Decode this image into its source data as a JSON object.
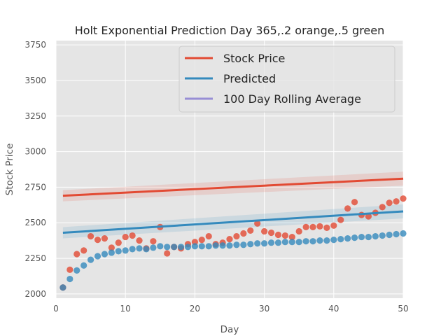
{
  "chart_data": {
    "type": "scatter",
    "title": "Holt Exponential Prediction Day 365,.2 orange,.5 green",
    "xlabel": "Day",
    "ylabel": "Stock Price",
    "xlim": [
      0,
      50
    ],
    "ylim": [
      1970,
      3780
    ],
    "x_ticks": [
      0,
      10,
      20,
      30,
      40,
      50
    ],
    "y_ticks": [
      2000,
      2250,
      2500,
      2750,
      3000,
      3250,
      3500,
      3750
    ],
    "grid": true,
    "legend_position": "top-right",
    "legend": [
      {
        "label": "Stock Price",
        "color": "#e24a33"
      },
      {
        "label": "Predicted",
        "color": "#348abd"
      },
      {
        "label": "100 Day Rolling Average",
        "color": "#988ed5"
      }
    ],
    "series": [
      {
        "name": "Stock Price",
        "color": "#e24a33",
        "x": [
          1,
          2,
          3,
          4,
          5,
          6,
          7,
          8,
          9,
          10,
          11,
          12,
          13,
          14,
          15,
          16,
          17,
          18,
          19,
          20,
          21,
          22,
          23,
          24,
          25,
          26,
          27,
          28,
          29,
          30,
          31,
          32,
          33,
          34,
          35,
          36,
          37,
          38,
          39,
          40,
          41,
          42,
          43,
          44,
          45,
          46,
          47,
          48,
          49,
          50
        ],
        "y": [
          2045,
          2170,
          2280,
          2305,
          2405,
          2380,
          2390,
          2325,
          2360,
          2400,
          2410,
          2375,
          2320,
          2370,
          2470,
          2285,
          2330,
          2320,
          2350,
          2365,
          2380,
          2405,
          2350,
          2360,
          2385,
          2405,
          2425,
          2445,
          2495,
          2440,
          2430,
          2415,
          2410,
          2400,
          2440,
          2470,
          2470,
          2475,
          2465,
          2480,
          2520,
          2600,
          2645,
          2555,
          2545,
          2570,
          2610,
          2640,
          2650,
          2670
        ],
        "trend": {
          "x": [
            1,
            50
          ],
          "y": [
            2690,
            2810
          ]
        }
      },
      {
        "name": "Predicted",
        "color": "#348abd",
        "x": [
          1,
          2,
          3,
          4,
          5,
          6,
          7,
          8,
          9,
          10,
          11,
          12,
          13,
          14,
          15,
          16,
          17,
          18,
          19,
          20,
          21,
          22,
          23,
          24,
          25,
          26,
          27,
          28,
          29,
          30,
          31,
          32,
          33,
          34,
          35,
          36,
          37,
          38,
          39,
          40,
          41,
          42,
          43,
          44,
          45,
          46,
          47,
          48,
          49,
          50
        ],
        "y": [
          2045,
          2105,
          2165,
          2200,
          2240,
          2265,
          2280,
          2290,
          2300,
          2305,
          2315,
          2320,
          2315,
          2325,
          2335,
          2330,
          2330,
          2330,
          2330,
          2335,
          2335,
          2335,
          2340,
          2340,
          2340,
          2345,
          2345,
          2350,
          2355,
          2355,
          2360,
          2360,
          2365,
          2365,
          2365,
          2370,
          2370,
          2375,
          2375,
          2380,
          2385,
          2390,
          2395,
          2400,
          2400,
          2405,
          2410,
          2415,
          2420,
          2425
        ],
        "trend": {
          "x": [
            1,
            50
          ],
          "y": [
            2430,
            2580
          ]
        }
      }
    ]
  }
}
